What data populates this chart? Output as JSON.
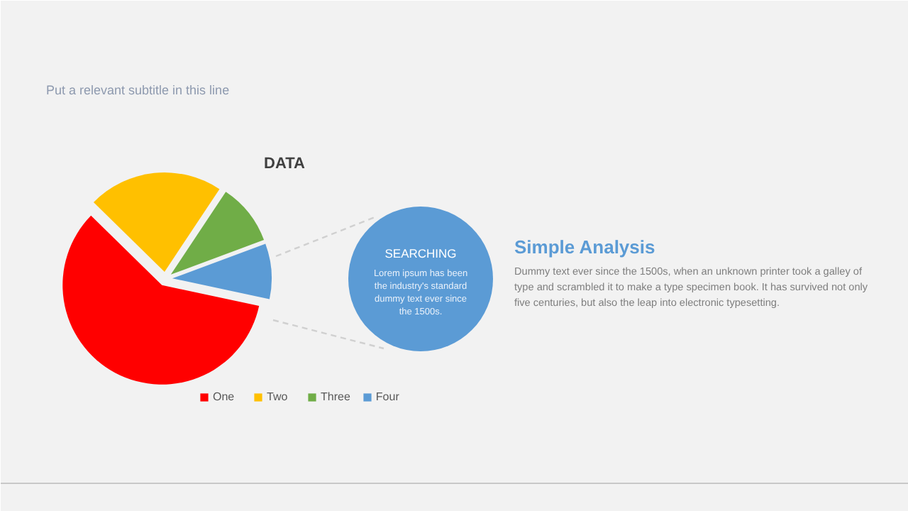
{
  "chart_data": {
    "type": "pie",
    "title": "DATA",
    "subtitle": "Put a relevant subtitle in this line",
    "categories": [
      "One",
      "Two",
      "Three",
      "Four"
    ],
    "values": [
      59,
      22,
      10,
      9
    ],
    "colors": [
      "#ff0000",
      "#ffc000",
      "#70ad47",
      "#5b9bd5"
    ],
    "legend": "bottom",
    "annotations": [
      "SEARCHING",
      "Lorem ipsum has been the industry's standard dummy text ever since the 1500s.",
      "Simple Analysis",
      "Dummy text ever since the 1500s, when an unknown printer took a galley of type and scrambled it to make a type specimen book. It has survived not only five centuries, but also the leap into electronic typesetting."
    ]
  }
}
